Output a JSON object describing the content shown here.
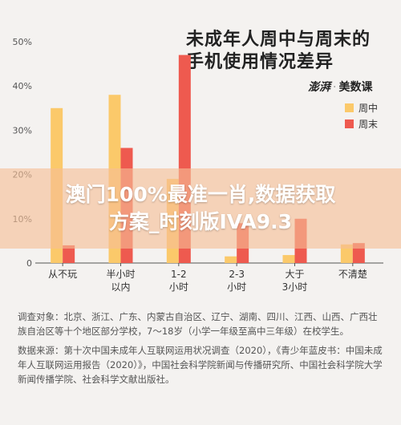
{
  "header": {
    "title_line1": "未成年人周中与周末的",
    "title_line2": "手机使用情况差异",
    "brand_name": "澎湃",
    "brand_sep": "·",
    "brand_sub": "美数课"
  },
  "overlay": {
    "line1": "澳门100%最准一肖,数据获取",
    "line2": "方案_时刻版IVA9.3"
  },
  "chart_data": {
    "type": "bar",
    "title": "未成年人周中与周末的手机使用情况差异",
    "categories": [
      [
        "从不玩"
      ],
      [
        "半小时",
        "以内"
      ],
      [
        "1-2",
        "小时"
      ],
      [
        "2-3",
        "小时"
      ],
      [
        "大于",
        "3小时"
      ],
      [
        "不清楚"
      ]
    ],
    "series": [
      {
        "name": "周中",
        "color": "#fbc96a",
        "values": [
          35,
          38,
          19,
          1.5,
          1.8,
          4.2
        ]
      },
      {
        "name": "周末",
        "color": "#ee5a4f",
        "values": [
          4,
          26,
          47,
          9,
          10,
          4.5
        ]
      }
    ],
    "yticks": [
      "0",
      "10%",
      "20%",
      "30%",
      "40%",
      "50%"
    ],
    "ylim": [
      0,
      50
    ],
    "grid": false,
    "legend": "right"
  },
  "notes": {
    "survey": "调查对象：北京、浙江、广东、内蒙古自治区、辽宁、湖南、四川、江西、山西、广西壮族自治区等十个地区部分学校，7～18岁（小学一年级至高中三年级）在校学生。",
    "source": "数据来源：第十次中国未成年人互联网运用状况调查（2020），《青少年蓝皮书：中国未成年人互联网运用报告（2020）》，中国社会科学院新闻与传播研究所、中国社会科学院大学新闻传播学院、社会科学文献出版社。"
  }
}
